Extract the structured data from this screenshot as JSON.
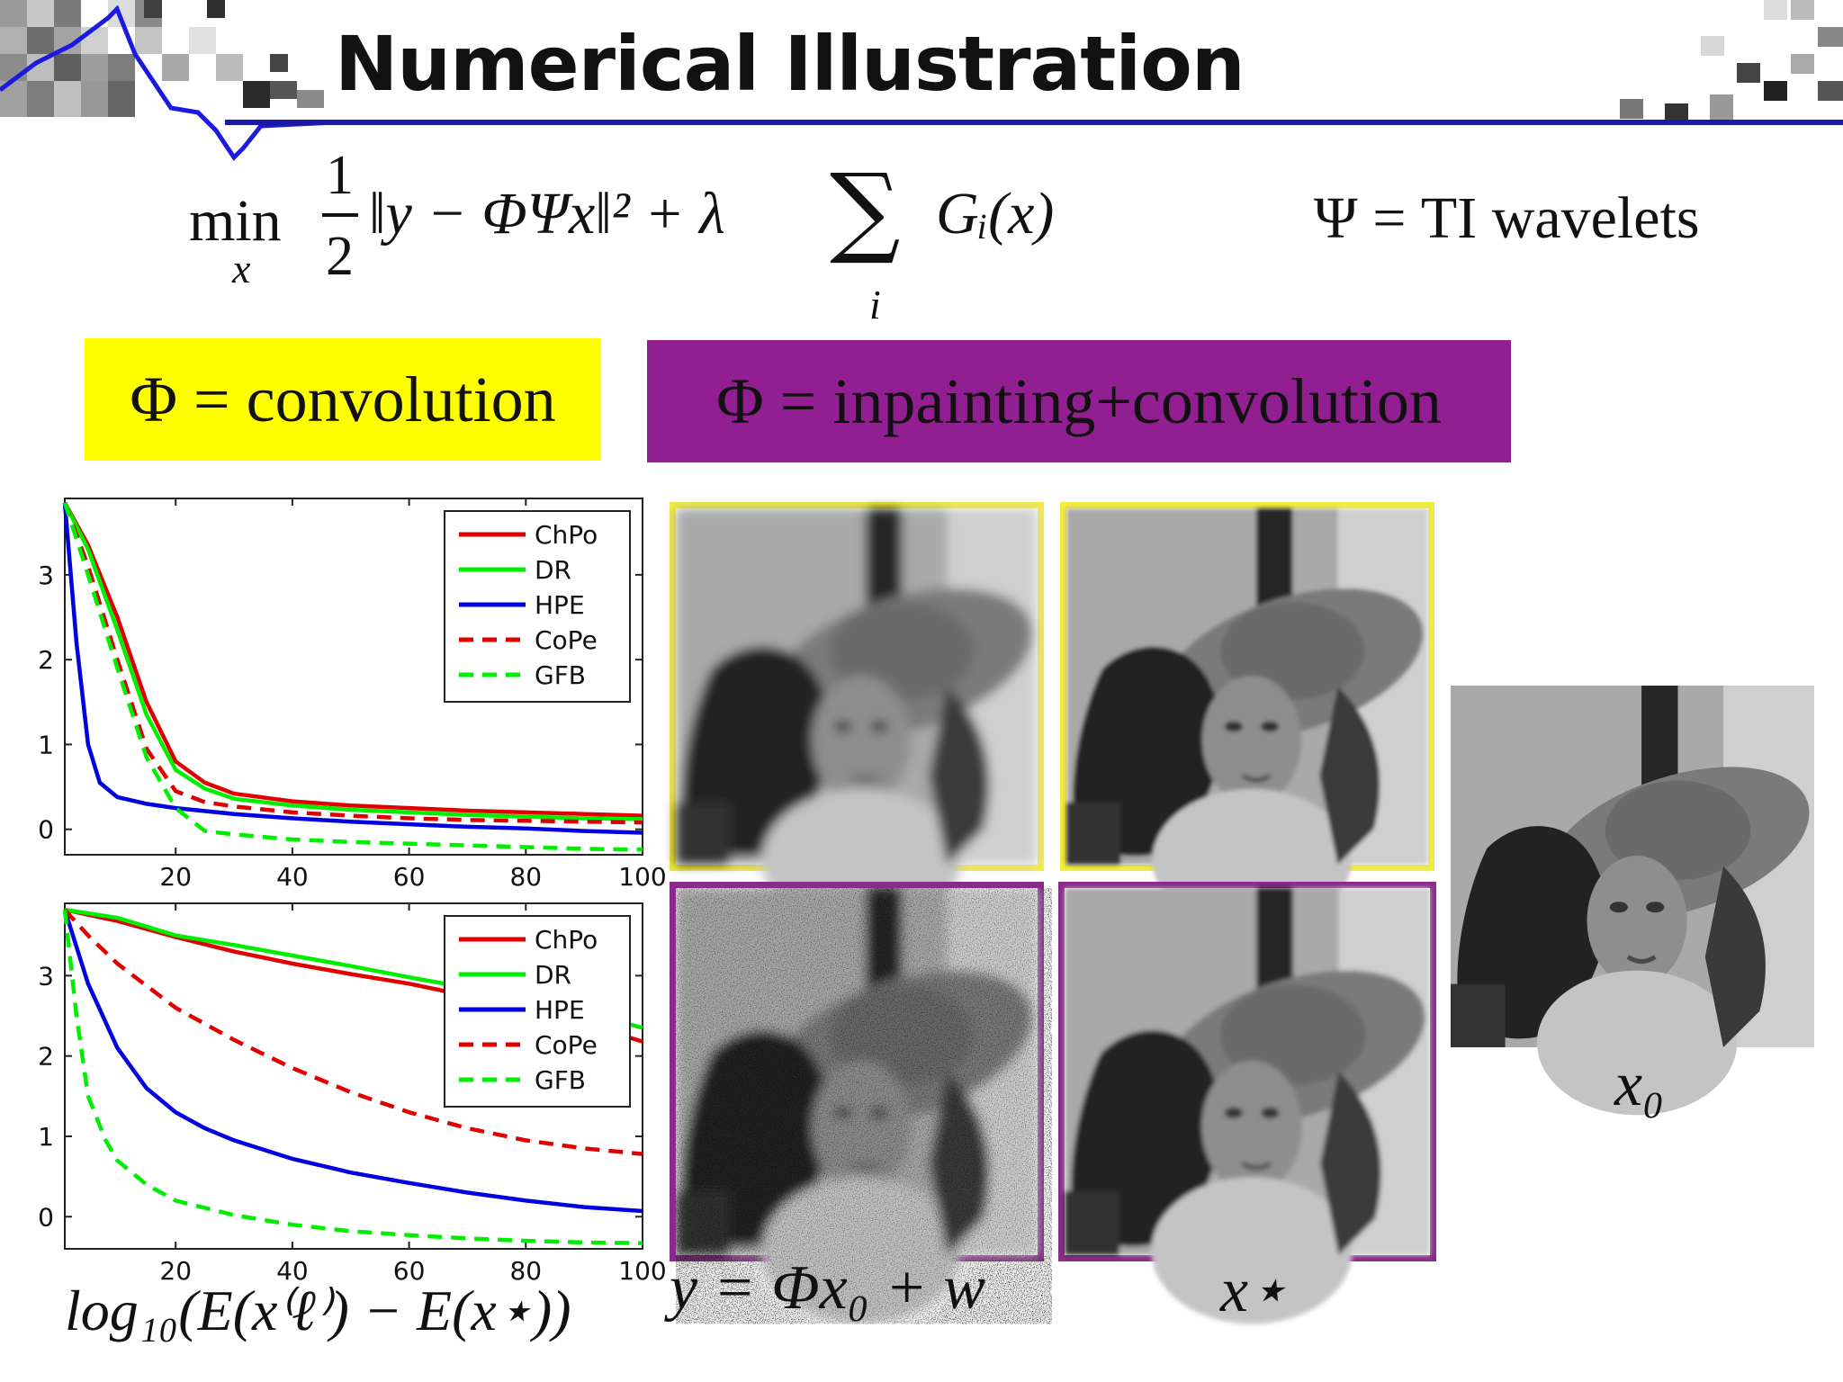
{
  "slide": {
    "title": "Numerical Illustration",
    "formula": {
      "min": "min",
      "min_sub": "x",
      "frac_num": "1",
      "frac_den": "2",
      "body": "‖y − ΦΨx‖² + λ",
      "sum_index": "i",
      "sum_term": "Gᵢ(x)"
    },
    "psi_note": "Ψ = TI wavelets",
    "box_convolution": "Φ = convolution",
    "box_inpainting": "Φ = inpainting+convolution",
    "caption_y": "y = Φx₀ + w",
    "caption_xstar": "x⋆",
    "caption_x0": "x₀",
    "ylabel_bottom": "log₁₀(E(x⁽ℓ⁾) − E(x⋆))",
    "colors": {
      "title_rule": "#1a1aa6",
      "convolution_box": "#ffff00",
      "inpainting_box": "#921f91",
      "frame_yellow": "#f2ec3a",
      "frame_purple": "#8a2a8a"
    }
  },
  "chart_data": [
    {
      "type": "line",
      "xlim": [
        1,
        100
      ],
      "ylim": [
        -0.3,
        3.9
      ],
      "xticks": [
        20,
        40,
        60,
        80,
        100
      ],
      "yticks": [
        0,
        1,
        2,
        3
      ],
      "legend_placement": "top-right",
      "series": [
        {
          "name": "ChPo",
          "color": "#e00000",
          "dash": false,
          "x": [
            1,
            5,
            10,
            15,
            20,
            25,
            30,
            40,
            50,
            60,
            70,
            80,
            90,
            100
          ],
          "y": [
            3.85,
            3.35,
            2.5,
            1.5,
            0.8,
            0.55,
            0.42,
            0.33,
            0.28,
            0.25,
            0.22,
            0.2,
            0.18,
            0.16
          ]
        },
        {
          "name": "DR",
          "color": "#00ee00",
          "dash": false,
          "x": [
            1,
            5,
            10,
            15,
            20,
            25,
            30,
            40,
            50,
            60,
            70,
            80,
            90,
            100
          ],
          "y": [
            3.85,
            3.3,
            2.35,
            1.35,
            0.7,
            0.48,
            0.36,
            0.28,
            0.23,
            0.2,
            0.17,
            0.15,
            0.13,
            0.12
          ]
        },
        {
          "name": "HPE",
          "color": "#0000e0",
          "dash": false,
          "x": [
            1,
            3,
            5,
            7,
            10,
            15,
            20,
            30,
            40,
            50,
            60,
            70,
            80,
            90,
            100
          ],
          "y": [
            3.85,
            2.2,
            1.0,
            0.55,
            0.38,
            0.3,
            0.25,
            0.18,
            0.13,
            0.09,
            0.06,
            0.03,
            0.01,
            -0.02,
            -0.04
          ]
        },
        {
          "name": "CoPe",
          "color": "#e00000",
          "dash": true,
          "x": [
            1,
            5,
            10,
            15,
            20,
            25,
            30,
            40,
            50,
            60,
            70,
            80,
            90,
            100
          ],
          "y": [
            3.85,
            3.1,
            2.0,
            0.95,
            0.45,
            0.32,
            0.27,
            0.2,
            0.16,
            0.13,
            0.11,
            0.1,
            0.09,
            0.08
          ]
        },
        {
          "name": "GFB",
          "color": "#00ee00",
          "dash": true,
          "x": [
            1,
            5,
            10,
            15,
            20,
            25,
            30,
            40,
            50,
            60,
            70,
            80,
            90,
            100
          ],
          "y": [
            3.85,
            3.0,
            1.9,
            0.85,
            0.25,
            -0.02,
            -0.06,
            -0.12,
            -0.15,
            -0.17,
            -0.19,
            -0.21,
            -0.23,
            -0.24
          ]
        }
      ]
    },
    {
      "type": "line",
      "xlim": [
        1,
        100
      ],
      "ylim": [
        -0.4,
        3.9
      ],
      "xticks": [
        20,
        40,
        60,
        80,
        100
      ],
      "yticks": [
        0,
        1,
        2,
        3
      ],
      "legend_placement": "top-right",
      "series": [
        {
          "name": "ChPo",
          "color": "#e00000",
          "dash": false,
          "x": [
            1,
            10,
            20,
            30,
            40,
            50,
            60,
            70,
            80,
            90,
            100
          ],
          "y": [
            3.82,
            3.68,
            3.48,
            3.3,
            3.15,
            3.02,
            2.9,
            2.75,
            2.6,
            2.4,
            2.18
          ]
        },
        {
          "name": "DR",
          "color": "#00ee00",
          "dash": false,
          "x": [
            1,
            10,
            20,
            30,
            40,
            50,
            60,
            70,
            80,
            90,
            100
          ],
          "y": [
            3.82,
            3.72,
            3.5,
            3.38,
            3.25,
            3.12,
            2.98,
            2.85,
            2.7,
            2.55,
            2.35
          ]
        },
        {
          "name": "HPE",
          "color": "#0000e0",
          "dash": false,
          "x": [
            1,
            5,
            10,
            15,
            20,
            25,
            30,
            40,
            50,
            60,
            70,
            80,
            90,
            100
          ],
          "y": [
            3.82,
            2.9,
            2.1,
            1.6,
            1.3,
            1.1,
            0.95,
            0.72,
            0.55,
            0.42,
            0.3,
            0.2,
            0.12,
            0.07
          ]
        },
        {
          "name": "CoPe",
          "color": "#e00000",
          "dash": true,
          "x": [
            1,
            5,
            10,
            20,
            30,
            40,
            50,
            60,
            70,
            80,
            90,
            100
          ],
          "y": [
            3.82,
            3.5,
            3.15,
            2.6,
            2.2,
            1.85,
            1.55,
            1.3,
            1.1,
            0.95,
            0.85,
            0.78
          ]
        },
        {
          "name": "GFB",
          "color": "#00ee00",
          "dash": true,
          "x": [
            1,
            3,
            5,
            8,
            10,
            15,
            20,
            30,
            40,
            50,
            60,
            70,
            80,
            90,
            100
          ],
          "y": [
            3.82,
            2.5,
            1.5,
            0.95,
            0.7,
            0.4,
            0.2,
            0.02,
            -0.1,
            -0.18,
            -0.23,
            -0.27,
            -0.3,
            -0.32,
            -0.33
          ]
        }
      ]
    }
  ]
}
